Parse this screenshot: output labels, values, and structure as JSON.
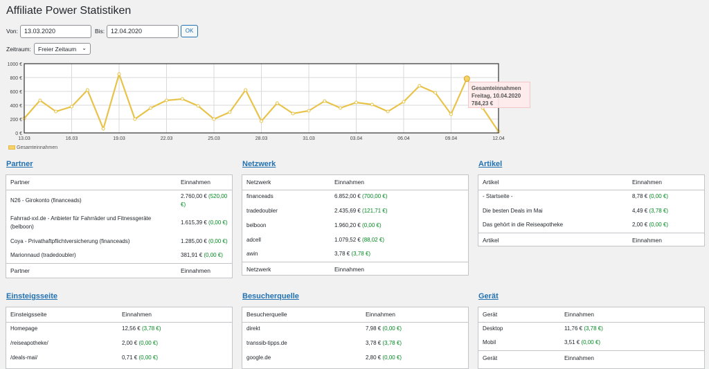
{
  "header": {
    "title": "Affiliate Power Statistiken"
  },
  "filters": {
    "from_label": "Von:",
    "from_value": "13.03.2020",
    "to_label": "Bis:",
    "to_value": "12.04.2020",
    "ok_label": "OK",
    "period_label": "Zeitraum:",
    "period_value": "Freier Zeitaum"
  },
  "chart_data": {
    "type": "line",
    "title": "",
    "legend": [
      "Gesamteinnahmen"
    ],
    "ylim": [
      0,
      1000
    ],
    "y_ticks": [
      "0 €",
      "200 €",
      "400 €",
      "600 €",
      "800 €",
      "1000 €"
    ],
    "x_ticks": [
      "13.03",
      "16.03",
      "19.03",
      "22.03",
      "25.03",
      "28.03",
      "31.03",
      "03.04",
      "06.04",
      "09.04",
      "12.04"
    ],
    "series": [
      {
        "name": "Gesamteinnahmen",
        "values": [
          210,
          470,
          310,
          380,
          620,
          60,
          850,
          200,
          360,
          470,
          490,
          390,
          200,
          300,
          620,
          170,
          430,
          280,
          320,
          460,
          360,
          440,
          410,
          310,
          450,
          680,
          580,
          270,
          784.23,
          360,
          20
        ]
      }
    ],
    "tooltip": {
      "title": "Gesamteinnahmen",
      "date": "Freitag, 10.04.2020",
      "value": "784,23 €"
    },
    "colors": {
      "line": "#e8c34a",
      "fill": "#f5d26b"
    }
  },
  "sections": {
    "partner": {
      "title": "Partner",
      "col1": "Partner",
      "col2": "Einnahmen",
      "rows": [
        {
          "name": "N26 - Girokonto (financeads)",
          "amount": "2.760,00 €",
          "delta": "(520,00 €)"
        },
        {
          "name": "Fahrrad-xxl.de - Anbieter für Fahrräder und Fitnessgeräte (belboon)",
          "amount": "1.615,39 €",
          "delta": "(0,00 €)"
        },
        {
          "name": "Coya - Privathaftpflichtversicherung (financeads)",
          "amount": "1.285,00 €",
          "delta": "(0,00 €)"
        },
        {
          "name": "Marionnaud (tradedoubler)",
          "amount": "381,91 €",
          "delta": "(0,00 €)"
        }
      ]
    },
    "netzwerk": {
      "title": "Netzwerk",
      "col1": "Netzwerk",
      "col2": "Einnahmen",
      "rows": [
        {
          "name": "financeads",
          "amount": "6.852,00 €",
          "delta": "(700,00 €)"
        },
        {
          "name": "tradedoubler",
          "amount": "2.435,69 €",
          "delta": "(121,71 €)"
        },
        {
          "name": "belboon",
          "amount": "1.960,20 €",
          "delta": "(0,00 €)"
        },
        {
          "name": "adcell",
          "amount": "1.079,52 €",
          "delta": "(88,02 €)"
        },
        {
          "name": "awin",
          "amount": "3,78 €",
          "delta": "(3,78 €)"
        }
      ]
    },
    "artikel": {
      "title": "Artikel",
      "col1": "Artikel",
      "col2": "Einnahmen",
      "rows": [
        {
          "name": "- Startseite -",
          "amount": "8,78 €",
          "delta": "(0,00 €)"
        },
        {
          "name": "Die besten Deals im Mai",
          "amount": "4,49 €",
          "delta": "(3,78 €)"
        },
        {
          "name": "Das gehört in die Reiseapotheke",
          "amount": "2,00 €",
          "delta": "(0,00 €)"
        }
      ]
    },
    "einstieg": {
      "title": "Einsteigsseite",
      "col1": "Einsteigsseite",
      "col2": "Einnahmen",
      "rows": [
        {
          "name": "Homepage",
          "amount": "12,56 €",
          "delta": "(3,78 €)"
        },
        {
          "name": "/reiseapotheke/",
          "amount": "2,00 €",
          "delta": "(0,00 €)"
        },
        {
          "name": "/deals-mai/",
          "amount": "0,71 €",
          "delta": "(0,00 €)"
        }
      ]
    },
    "besucher": {
      "title": "Besucherquelle",
      "col1": "Besucherquelle",
      "col2": "Einnahmen",
      "rows": [
        {
          "name": "direkt",
          "amount": "7,98 €",
          "delta": "(0,00 €)"
        },
        {
          "name": "transsib-tipps.de",
          "amount": "3,78 €",
          "delta": "(3,78 €)"
        },
        {
          "name": "google.de",
          "amount": "2,80 €",
          "delta": "(0,00 €)"
        }
      ]
    },
    "geraet": {
      "title": "Gerät",
      "col1": "Gerät",
      "col2": "Einnahmen",
      "rows": [
        {
          "name": "Desktop",
          "amount": "11,76 €",
          "delta": "(3,78 €)"
        },
        {
          "name": "Mobil",
          "amount": "3,51 €",
          "delta": "(0,00 €)"
        }
      ]
    }
  }
}
